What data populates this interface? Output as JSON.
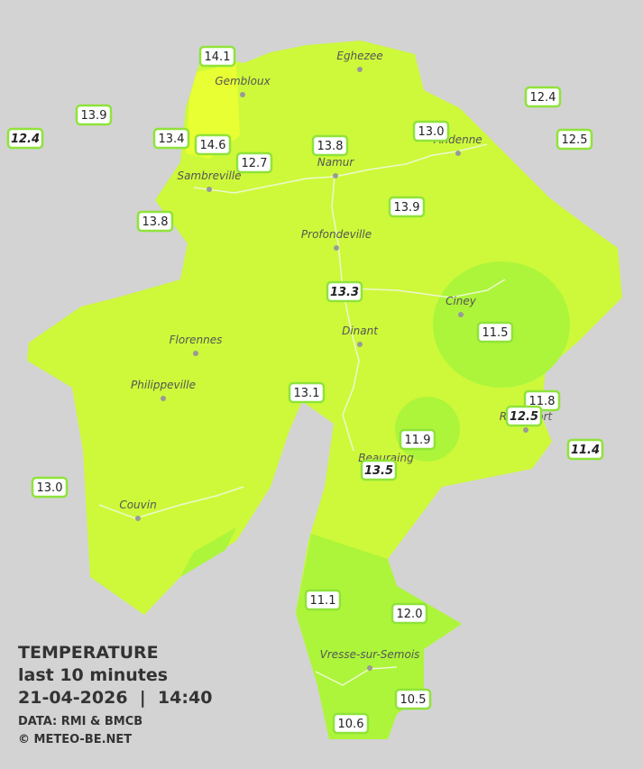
{
  "legend": {
    "title": "TEMPERATURE",
    "period": "last 10 minutes",
    "datetime": "21-04-2026  |  14:40",
    "source": "DATA: RMI & BMCB",
    "copyright": "© METEO-BE.NET"
  },
  "towns": [
    "Eghezee",
    "Gembloux",
    "Andenne",
    "Namur",
    "Sambreville",
    "Profondeville",
    "Ciney",
    "Dinant",
    "Florennes",
    "Philippeville",
    "Rochefort",
    "Beauraing",
    "Couvin",
    "Vresse-sur-Semois"
  ],
  "stations": [
    {
      "value": "14.1",
      "italic": false
    },
    {
      "value": "13.9",
      "italic": false
    },
    {
      "value": "12.4",
      "italic": true
    },
    {
      "value": "13.4",
      "italic": false
    },
    {
      "value": "14.6",
      "italic": false
    },
    {
      "value": "12.7",
      "italic": false
    },
    {
      "value": "13.8",
      "italic": false
    },
    {
      "value": "13.0",
      "italic": false
    },
    {
      "value": "12.4",
      "italic": false
    },
    {
      "value": "12.5",
      "italic": false
    },
    {
      "value": "13.8",
      "italic": false
    },
    {
      "value": "13.9",
      "italic": false
    },
    {
      "value": "13.3",
      "italic": true
    },
    {
      "value": "11.5",
      "italic": false
    },
    {
      "value": "13.1",
      "italic": false
    },
    {
      "value": "11.8",
      "italic": false
    },
    {
      "value": "12.5",
      "italic": true
    },
    {
      "value": "11.9",
      "italic": false
    },
    {
      "value": "11.4",
      "italic": true
    },
    {
      "value": "13.5",
      "italic": true
    },
    {
      "value": "13.0",
      "italic": false
    },
    {
      "value": "11.1",
      "italic": false
    },
    {
      "value": "12.0",
      "italic": false
    },
    {
      "value": "10.5",
      "italic": false
    },
    {
      "value": "10.6",
      "italic": false
    }
  ]
}
